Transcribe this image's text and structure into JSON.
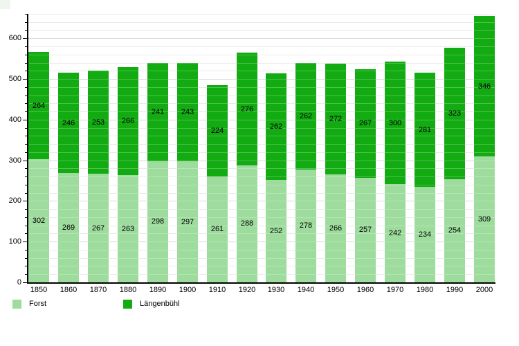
{
  "chart_data": {
    "type": "bar",
    "stacked": true,
    "title": "",
    "xlabel": "",
    "ylabel": "",
    "categories": [
      "1850",
      "1860",
      "1870",
      "1880",
      "1890",
      "1900",
      "1910",
      "1920",
      "1930",
      "1940",
      "1950",
      "1960",
      "1970",
      "1980",
      "1990",
      "2000"
    ],
    "series": [
      {
        "name": "Forst",
        "color": "#9edc9e",
        "values": [
          302,
          269,
          267,
          263,
          298,
          297,
          261,
          288,
          252,
          278,
          266,
          257,
          242,
          234,
          254,
          309
        ]
      },
      {
        "name": "Längenbühl",
        "color": "#12ab12",
        "values": [
          264,
          246,
          253,
          266,
          241,
          243,
          224,
          276,
          262,
          262,
          272,
          267,
          300,
          281,
          323,
          346
        ]
      }
    ],
    "totals": [
      566,
      515,
      520,
      529,
      539,
      540,
      485,
      564,
      514,
      540,
      538,
      524,
      542,
      515,
      577,
      655
    ],
    "ylim": [
      0,
      660
    ],
    "yticks": [
      0,
      100,
      200,
      300,
      400,
      500,
      600
    ],
    "minor_tick_step": 20,
    "grid": "on",
    "bar_value_labels": true,
    "legend_position": "bottom-left",
    "colors": {
      "background": "#ffffff",
      "axis": "#000000",
      "grid_minor": "#e4e4e4",
      "grid_major": "#cbcbcb",
      "value_label_text": "#000000"
    }
  },
  "legend": {
    "items": [
      {
        "label": "Forst"
      },
      {
        "label": "Längenbühl"
      }
    ]
  }
}
